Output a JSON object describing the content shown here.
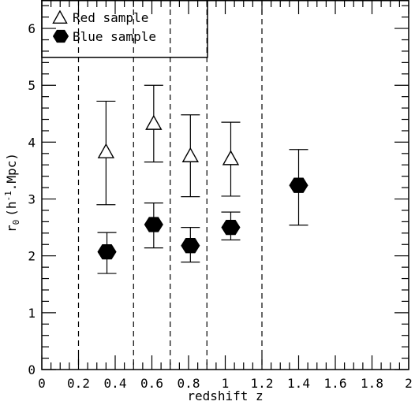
{
  "chart_data": {
    "type": "scatter",
    "xlabel": "redshift z",
    "ylabel_base": "r",
    "ylabel_sub": "0",
    "ylabel_paren_open": "(h",
    "ylabel_sup": "-1",
    "ylabel_unit": ".Mpc)",
    "xlim": [
      0,
      2
    ],
    "ylim": [
      0,
      6.5
    ],
    "x_ticks": [
      0,
      0.2,
      0.4,
      0.6,
      0.8,
      1,
      1.2,
      1.4,
      1.6,
      1.8,
      2
    ],
    "x_tick_labels": [
      "0",
      "0.2",
      "0.4",
      "0.6",
      "0.8",
      "1",
      "1.2",
      "1.4",
      "1.6",
      "1.8",
      "2"
    ],
    "y_ticks": [
      0,
      1,
      2,
      3,
      4,
      5,
      6
    ],
    "y_tick_labels": [
      "0",
      "1",
      "2",
      "3",
      "4",
      "5",
      "6"
    ],
    "bin_edges": [
      0.2,
      0.5,
      0.7,
      0.9,
      1.2
    ],
    "legend_position": "top-left",
    "series": [
      {
        "name": "Red sample",
        "marker": "open-triangle",
        "points": [
          {
            "x": 0.35,
            "y": 3.85,
            "y_lo": 2.9,
            "y_hi": 4.72
          },
          {
            "x": 0.61,
            "y": 4.35,
            "y_lo": 3.65,
            "y_hi": 5.0
          },
          {
            "x": 0.81,
            "y": 3.78,
            "y_lo": 3.04,
            "y_hi": 4.48
          },
          {
            "x": 1.03,
            "y": 3.73,
            "y_lo": 3.05,
            "y_hi": 4.35
          }
        ]
      },
      {
        "name": "Blue sample",
        "marker": "filled-hexagon",
        "points": [
          {
            "x": 0.355,
            "y": 2.07,
            "y_lo": 1.69,
            "y_hi": 2.41
          },
          {
            "x": 0.61,
            "y": 2.55,
            "y_lo": 2.14,
            "y_hi": 2.93
          },
          {
            "x": 0.81,
            "y": 2.18,
            "y_lo": 1.89,
            "y_hi": 2.5
          },
          {
            "x": 1.03,
            "y": 2.5,
            "y_lo": 2.28,
            "y_hi": 2.77
          },
          {
            "x": 1.4,
            "y": 3.24,
            "y_lo": 2.54,
            "y_hi": 3.87
          }
        ]
      }
    ]
  }
}
